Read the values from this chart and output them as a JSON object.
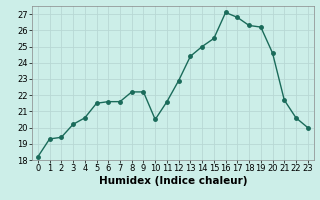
{
  "x": [
    0,
    1,
    2,
    3,
    4,
    5,
    6,
    7,
    8,
    9,
    10,
    11,
    12,
    13,
    14,
    15,
    16,
    17,
    18,
    19,
    20,
    21,
    22,
    23
  ],
  "y": [
    18.2,
    19.3,
    19.4,
    20.2,
    20.6,
    21.5,
    21.6,
    21.6,
    22.2,
    22.2,
    20.5,
    21.6,
    22.9,
    24.4,
    25.0,
    25.5,
    27.1,
    26.8,
    26.3,
    26.2,
    24.6,
    21.7,
    20.6,
    20.0
  ],
  "line_color": "#1a6b5a",
  "marker": "o",
  "markersize": 2.5,
  "linewidth": 1.0,
  "xlabel": "Humidex (Indice chaleur)",
  "ylim": [
    18,
    27.5
  ],
  "xlim": [
    -0.5,
    23.5
  ],
  "yticks": [
    18,
    19,
    20,
    21,
    22,
    23,
    24,
    25,
    26,
    27
  ],
  "xticks": [
    0,
    1,
    2,
    3,
    4,
    5,
    6,
    7,
    8,
    9,
    10,
    11,
    12,
    13,
    14,
    15,
    16,
    17,
    18,
    19,
    20,
    21,
    22,
    23
  ],
  "bg_color": "#cceee8",
  "grid_color": "#b8d8d4",
  "tick_labelsize": 6,
  "xlabel_fontsize": 7.5
}
